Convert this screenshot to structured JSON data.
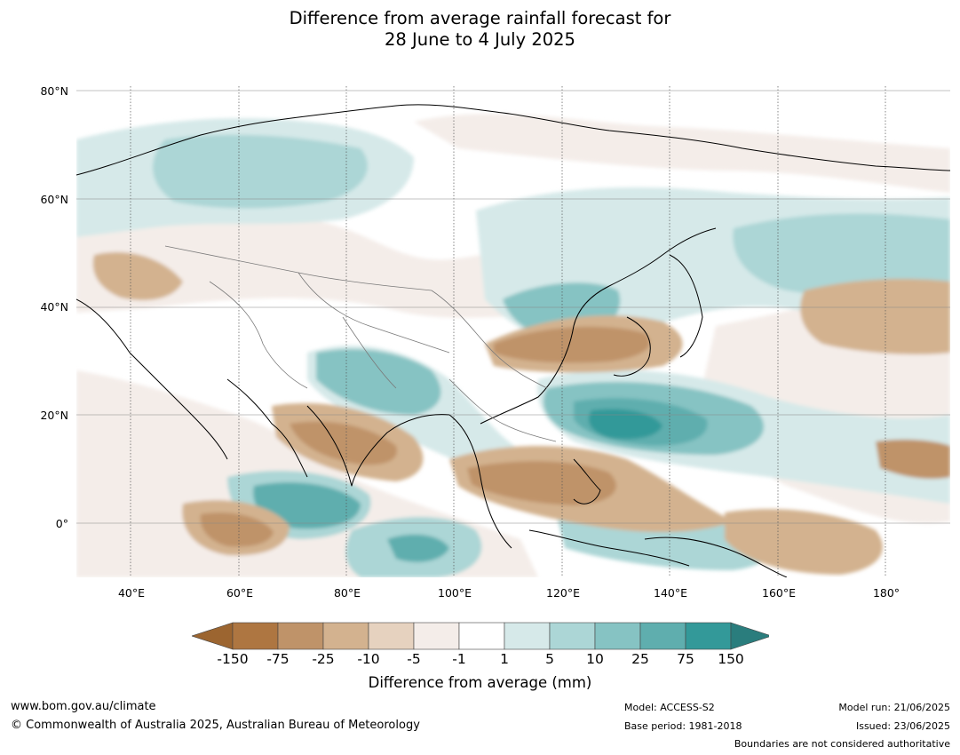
{
  "title": {
    "line1": "Difference from average rainfall forecast for",
    "line2": "28 June to 4 July 2025"
  },
  "map": {
    "lat_labels": [
      "80°N",
      "60°N",
      "40°N",
      "20°N",
      "0°"
    ],
    "lon_labels": [
      "40°E",
      "60°E",
      "80°E",
      "100°E",
      "120°E",
      "140°E",
      "160°E",
      "180°"
    ],
    "region": "Asia and western Pacific",
    "projection": "equirectangular",
    "graticule": "dotted",
    "extent": {
      "lon": [
        30,
        192
      ],
      "lat": [
        -10,
        81
      ]
    }
  },
  "colorbar": {
    "colors": [
      "#9c6530",
      "#ae7641",
      "#bf9369",
      "#d3b28f",
      "#e6d2bf",
      "#f4ede9",
      "#ffffff",
      "#d6e9e9",
      "#acd6d6",
      "#86c3c3",
      "#5faeae",
      "#339999",
      "#2a7d7d"
    ],
    "tick_labels": [
      "-150",
      "-75",
      "-25",
      "-10",
      "-5",
      "-1",
      "1",
      "5",
      "10",
      "25",
      "75",
      "150"
    ],
    "label": "Difference from average (mm)"
  },
  "footer": {
    "url": "www.bom.gov.au/climate",
    "copyright": "© Commonwealth of Australia 2025, Australian Bureau of Meteorology",
    "model": "Model: ACCESS-S2",
    "base_period": "Base period: 1981-2018",
    "model_run": "Model run: 21/06/2025",
    "issued": "Issued: 23/06/2025",
    "disclaimer": "Boundaries are not considered authoritative"
  }
}
